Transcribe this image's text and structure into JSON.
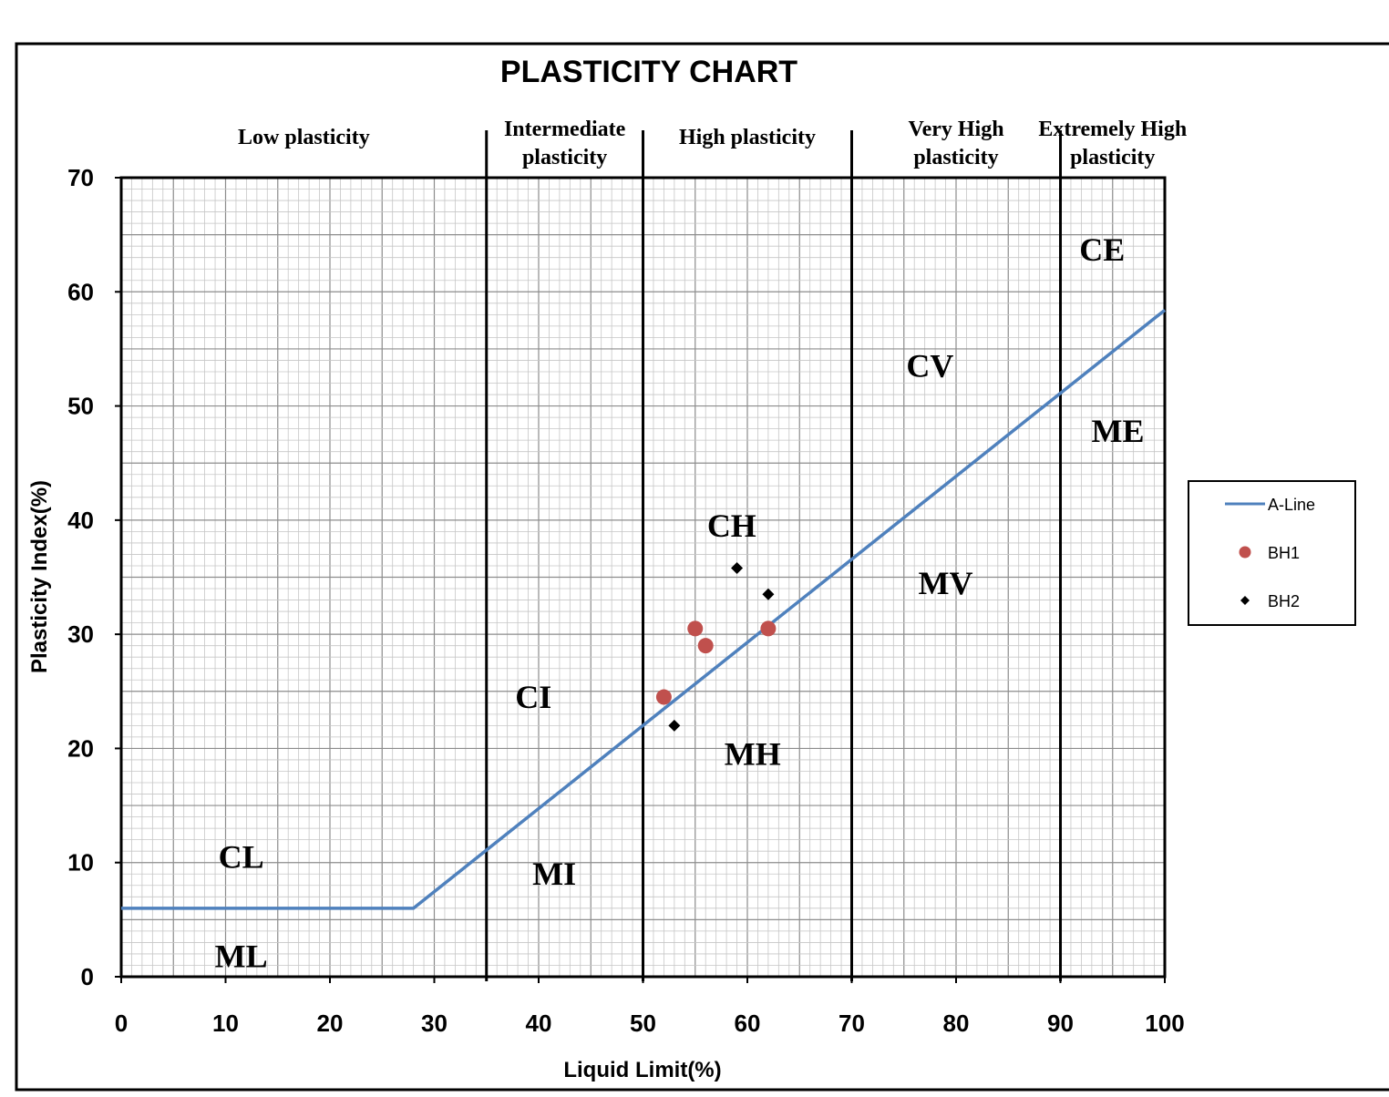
{
  "chart_data": {
    "type": "scatter",
    "title": "PLASTICITY CHART",
    "xlabel": "Liquid Limit(%)",
    "ylabel": "Plasticity Index(%)",
    "xlim": [
      0,
      100
    ],
    "ylim": [
      0,
      70
    ],
    "x_ticks": [
      "0",
      "10",
      "20",
      "30",
      "40",
      "50",
      "60",
      "70",
      "80",
      "90",
      "100"
    ],
    "y_ticks": [
      "0",
      "10",
      "20",
      "30",
      "40",
      "50",
      "60",
      "70"
    ],
    "grid": true,
    "legend_position": "right",
    "plasticity_bands": [
      {
        "label": "Low plasticity",
        "from": 0,
        "to": 35
      },
      {
        "label": "Intermediate plasticity",
        "from": 35,
        "to": 50
      },
      {
        "label": "High plasticity",
        "from": 50,
        "to": 70
      },
      {
        "label": "Very High plasticity",
        "from": 70,
        "to": 90
      },
      {
        "label": "Extremely High plasticity",
        "from": 90,
        "to": 100
      }
    ],
    "zone_labels": [
      {
        "text": "CL",
        "x": 11.5,
        "y": 10.5
      },
      {
        "text": "ML",
        "x": 11.5,
        "y": 1.8
      },
      {
        "text": "CI",
        "x": 39.5,
        "y": 24.5
      },
      {
        "text": "MI",
        "x": 41.5,
        "y": 9.0
      },
      {
        "text": "CH",
        "x": 58.5,
        "y": 39.5
      },
      {
        "text": "MH",
        "x": 60.5,
        "y": 19.5
      },
      {
        "text": "CV",
        "x": 77.5,
        "y": 53.5
      },
      {
        "text": "MV",
        "x": 79.0,
        "y": 34.5
      },
      {
        "text": "CE",
        "x": 94.0,
        "y": 63.7
      },
      {
        "text": "ME",
        "x": 95.5,
        "y": 47.8
      }
    ],
    "series": [
      {
        "name": "A-Line",
        "kind": "line",
        "color": "#4f81bd",
        "x": [
          0,
          28,
          100
        ],
        "y": [
          6,
          6,
          58.4
        ]
      },
      {
        "name": "BH1",
        "kind": "scatter",
        "marker": "circle",
        "color": "#c0504d",
        "x": [
          52,
          55,
          56,
          62
        ],
        "y": [
          24.5,
          30.5,
          29,
          30.5
        ]
      },
      {
        "name": "BH2",
        "kind": "scatter",
        "marker": "diamond",
        "color": "#000000",
        "x": [
          53,
          59,
          62
        ],
        "y": [
          22,
          35.8,
          33.5
        ]
      }
    ]
  }
}
